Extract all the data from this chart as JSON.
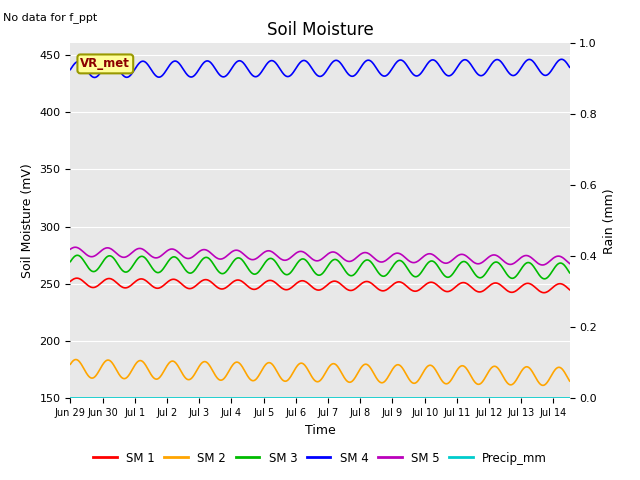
{
  "title": "Soil Moisture",
  "xlabel": "Time",
  "ylabel_left": "Soil Moisture (mV)",
  "ylabel_right": "Rain (mm)",
  "no_data_text": "No data for f_ppt",
  "vr_met_label": "VR_met",
  "ylim_left": [
    150,
    460
  ],
  "ylim_right": [
    0.0,
    1.0
  ],
  "background_color": "#e8e8e8",
  "fig_background": "#ffffff",
  "lines": {
    "SM1": {
      "color": "#ff0000",
      "mean": 251,
      "amplitude": 4,
      "trend": -5,
      "freq": 1.0,
      "phase": 0.3
    },
    "SM2": {
      "color": "#ffa500",
      "mean": 176,
      "amplitude": 8,
      "trend": -7,
      "freq": 1.0,
      "phase": 0.5
    },
    "SM3": {
      "color": "#00bb00",
      "mean": 268,
      "amplitude": 7,
      "trend": -7,
      "freq": 1.0,
      "phase": 0.2
    },
    "SM4": {
      "color": "#0000ff",
      "mean": 437,
      "amplitude": 7,
      "trend": 2,
      "freq": 1.0,
      "phase": 0.0
    },
    "SM5": {
      "color": "#bb00bb",
      "mean": 278,
      "amplitude": 4,
      "trend": -8,
      "freq": 1.0,
      "phase": 0.6
    },
    "Precip": {
      "color": "#00cccc",
      "mean": 150,
      "amplitude": 0,
      "trend": 0,
      "freq": 0,
      "phase": 0
    }
  },
  "yticks_left": [
    150,
    200,
    250,
    300,
    350,
    400,
    450
  ],
  "yticks_right": [
    0.0,
    0.2,
    0.4,
    0.6,
    0.8,
    1.0
  ],
  "xtick_labels": [
    "Jun 29",
    "Jun 30",
    "Jul 1",
    "Jul 2",
    "Jul 3",
    "Jul 4",
    "Jul 5",
    "Jul 6",
    "Jul 7",
    "Jul 8",
    "Jul 9",
    "Jul 10",
    "Jul 11",
    "Jul 12",
    "Jul 13",
    "Jul 14"
  ],
  "legend_labels": [
    "SM 1",
    "SM 2",
    "SM 3",
    "SM 4",
    "SM 5",
    "Precip_mm"
  ],
  "legend_colors": [
    "#ff0000",
    "#ffa500",
    "#00bb00",
    "#0000ff",
    "#bb00bb",
    "#00cccc"
  ]
}
